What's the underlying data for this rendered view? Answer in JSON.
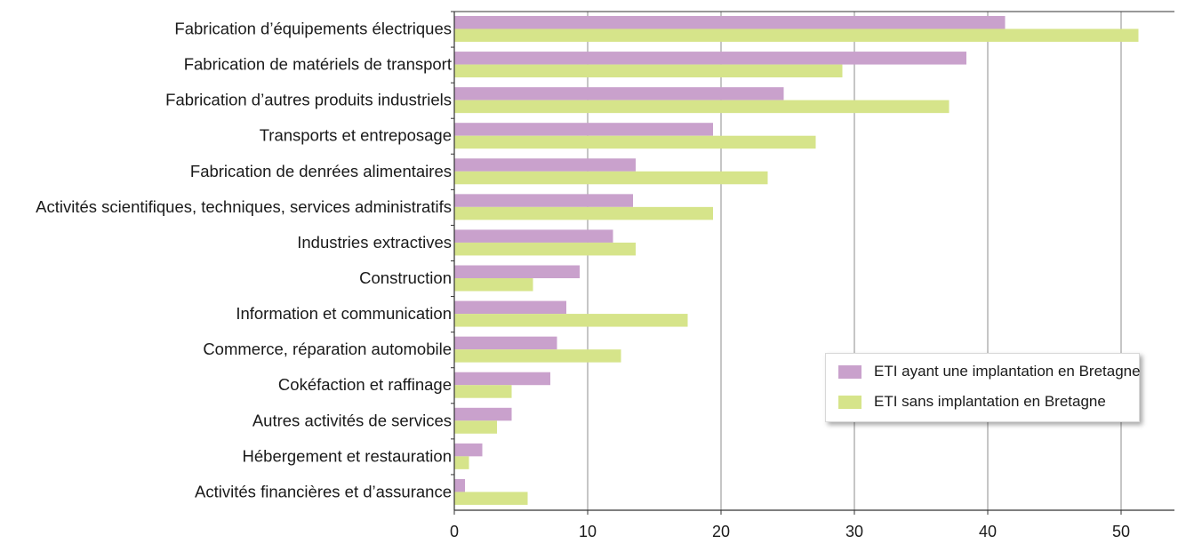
{
  "colors": {
    "series1": "#c9a1cc",
    "series2": "#d6e48a",
    "grid": "#a0a0a0",
    "axis": "#333333"
  },
  "chart_data": {
    "type": "bar",
    "orientation": "horizontal",
    "title": "",
    "xlabel": "",
    "ylabel": "",
    "xlim": [
      0,
      54
    ],
    "x_ticks": [
      0,
      10,
      20,
      30,
      40,
      50
    ],
    "grid": "vertical",
    "legend_position": "bottom-right",
    "categories": [
      "Fabrication d’équipements électriques",
      "Fabrication de matériels de transport",
      "Fabrication d’autres produits industriels",
      "Transports et entreposage",
      "Fabrication de denrées alimentaires",
      "Activités scientifiques, techniques, services administratifs",
      "Industries extractives",
      "Construction",
      "Information et communication",
      "Commerce, réparation automobile",
      "Cokéfaction et raffinage",
      "Autres activités de services",
      "Hébergement et restauration",
      "Activités financières et d’assurance"
    ],
    "series": [
      {
        "name": "ETI ayant une implantation en Bretagne",
        "values": [
          41.3,
          38.4,
          24.7,
          19.4,
          13.6,
          13.4,
          11.9,
          9.4,
          8.4,
          7.7,
          7.2,
          4.3,
          2.1,
          0.8
        ]
      },
      {
        "name": "ETI sans implantation en Bretagne",
        "values": [
          51.3,
          29.1,
          37.1,
          27.1,
          23.5,
          19.4,
          13.6,
          5.9,
          17.5,
          12.5,
          4.3,
          3.2,
          1.1,
          5.5
        ]
      }
    ]
  }
}
